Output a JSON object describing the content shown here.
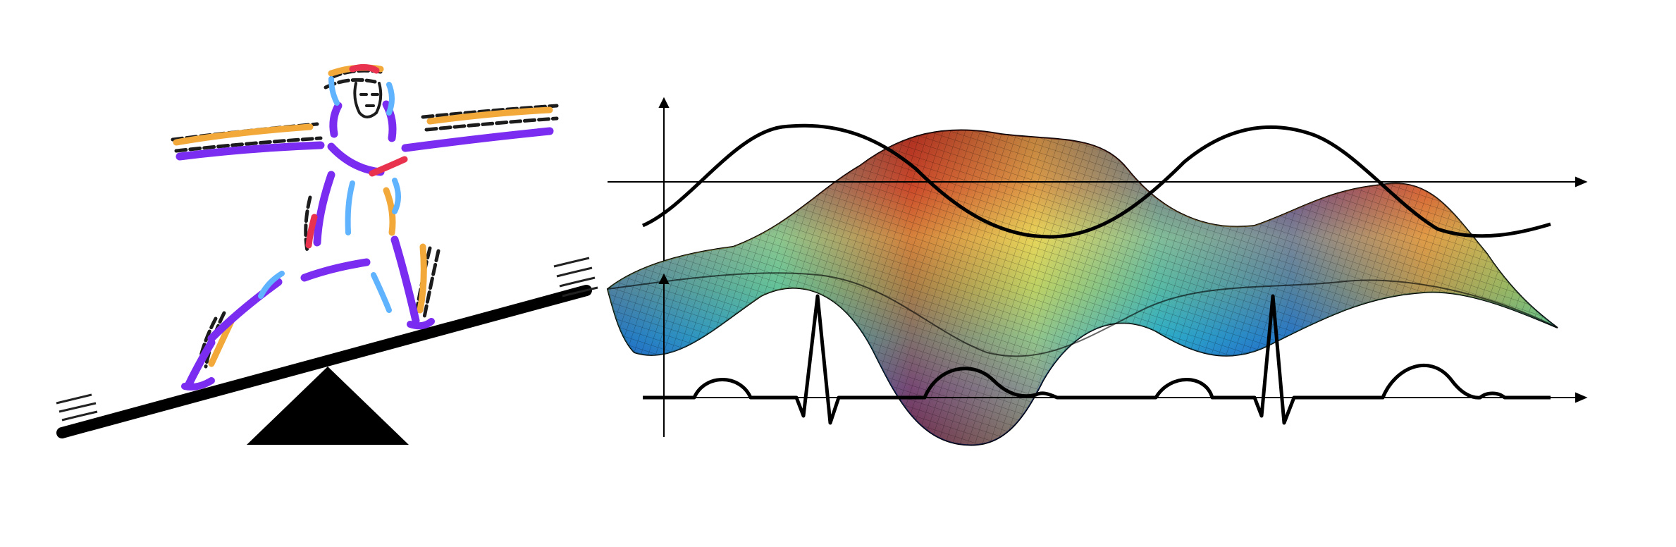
{
  "scene": {
    "left_panel": {
      "figure": "stylized-human-figure",
      "seesaw": "seesaw-board",
      "fulcrum": "triangle-fulcrum",
      "colors": {
        "purple": "#7a2cf0",
        "orange": "#f2a93a",
        "red": "#e8324e",
        "lightblue": "#5fb3ff",
        "shadow": "#1c1c1c",
        "black": "#000000"
      }
    },
    "right_panel": {
      "surface": "colored-3d-wave-surface",
      "upper_signal": "sine-wave",
      "lower_signal": "ecg-like-pulse-signal",
      "surface_colors": [
        "#0b1e8a",
        "#1b5fd8",
        "#2fb7c7",
        "#9bd36a",
        "#f2e65b",
        "#e46d3a",
        "#9b1f1a"
      ],
      "axis_color": "#000000"
    }
  }
}
